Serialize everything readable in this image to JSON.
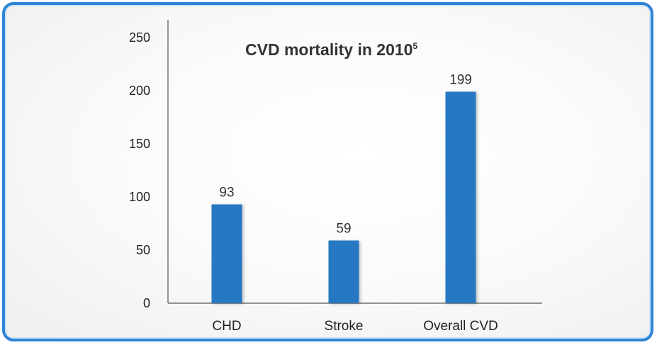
{
  "chart_data": {
    "type": "bar",
    "title": "CVD mortality in 2010",
    "title_superscript": "5",
    "categories": [
      "CHD",
      "Stroke",
      "Overall CVD"
    ],
    "values": [
      93,
      59,
      199
    ],
    "data_labels": [
      "93",
      "59",
      "199"
    ],
    "y_ticks": [
      0,
      50,
      100,
      150,
      200,
      250
    ],
    "ylim": [
      0,
      250
    ],
    "xlabel": "",
    "ylabel": "",
    "grid": false,
    "bar_color": "#2878c2",
    "frame_color": "#2f84d6"
  }
}
